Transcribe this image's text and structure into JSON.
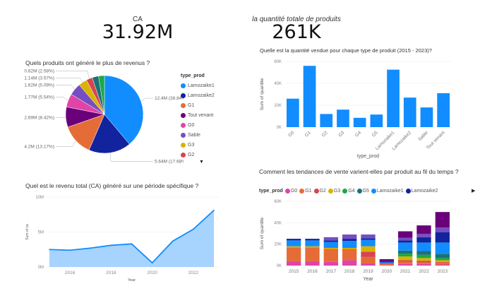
{
  "kpis": [
    {
      "label": "CA",
      "value": "31.92M"
    },
    {
      "label": "la quantité totale de produits",
      "value": "261K"
    }
  ],
  "colors": {
    "Lamozaike1": "#118DFF",
    "Lamozaike2": "#12239E",
    "G1": "#E66C37",
    "Tout venant": "#6B007B",
    "G0": "#E044A7",
    "Sable": "#744EC2",
    "G3": "#D9B300",
    "G2": "#D64550",
    "G5": "#197278",
    "G4": "#1AAB40"
  },
  "chart_data": [
    {
      "type": "pie",
      "title": "Quels produits ont généré le plus de revenus ?",
      "legend_title": "type_prod",
      "legend_position": "right",
      "legend": [
        "Lamozaike1",
        "Lamozaike2",
        "G1",
        "Tout venant",
        "G0",
        "Sable",
        "G3",
        "G2"
      ],
      "slices": [
        {
          "name": "Lamozaike1",
          "value": 12.4,
          "label": "12.4M (38.84%)"
        },
        {
          "name": "Lamozaike2",
          "value": 5.64,
          "label": "5.64M (17.68%)"
        },
        {
          "name": "G1",
          "value": 4.2,
          "label": "4.2M (13.17%)"
        },
        {
          "name": "Tout venant",
          "value": 2.69,
          "label": "2.69M (8.42%)"
        },
        {
          "name": "G0",
          "value": 1.77,
          "label": "1.77M (5.54%)"
        },
        {
          "name": "Sable",
          "value": 1.62,
          "label": "1.62M (5.09%)"
        },
        {
          "name": "G3",
          "value": 1.14,
          "label": "1.14M (3.57%)"
        },
        {
          "name": "G2",
          "value": 0.82,
          "label": "0.82M (2.58%)"
        },
        {
          "name": "G5",
          "value": 0.85,
          "label": ""
        },
        {
          "name": "G4",
          "value": 0.78,
          "label": ""
        }
      ]
    },
    {
      "type": "bar",
      "title": "Quelle est la quantité vendue pour chaque type de produit (2015 - 2023)?",
      "xlabel": "type_prod",
      "ylabel": "Sum of quantite",
      "ylim": [
        0,
        60000
      ],
      "yticks": [
        "0K",
        "20K",
        "40K",
        "60K"
      ],
      "grid": true,
      "categories": [
        "G0",
        "G1",
        "G2",
        "G3",
        "G4",
        "G5",
        "Lamozaike1",
        "Lamozaike2",
        "Sable",
        "Tout venant"
      ],
      "values": [
        26000,
        56000,
        12000,
        16000,
        8500,
        11500,
        52500,
        27000,
        18000,
        31000
      ]
    },
    {
      "type": "area",
      "title": "Quel est le revenu total (CA) généré sur une période spécifique ?",
      "xlabel": "Year",
      "ylabel": "Sum of ca",
      "ylim": [
        0,
        10
      ],
      "yticks": [
        "0M",
        "5M",
        "10M"
      ],
      "xticks": [
        "2016",
        "2018",
        "2020",
        "2022"
      ],
      "grid": true,
      "x": [
        2015,
        2016,
        2017,
        2018,
        2019,
        2020,
        2021,
        2022,
        2023
      ],
      "values": [
        2.5,
        2.4,
        2.7,
        3.1,
        3.3,
        0.6,
        3.7,
        5.4,
        8.1
      ]
    },
    {
      "type": "bar",
      "stacked": true,
      "title": "Comment les tendances de vente varient-elles par produit au fil du temps ?",
      "legend_title": "type_prod",
      "legend_position": "top",
      "xlabel": "Year",
      "ylabel": "Sum of quantite",
      "ylim": [
        0,
        60000
      ],
      "yticks": [
        "0K",
        "20K",
        "40K",
        "60K"
      ],
      "grid": true,
      "legend": [
        "G0",
        "G1",
        "G2",
        "G3",
        "G4",
        "G5",
        "Lamozaike1",
        "Lamozaike2"
      ],
      "categories": [
        "2015",
        "2016",
        "2017",
        "2018",
        "2019",
        "2020",
        "2021",
        "2022",
        "2023"
      ],
      "series": [
        {
          "name": "G0",
          "values": [
            4000,
            4000,
            3500,
            5000,
            2000,
            500,
            1500,
            1500,
            1000
          ]
        },
        {
          "name": "G1",
          "values": [
            13000,
            13000,
            12000,
            10500,
            6000,
            1000,
            2000,
            1500,
            2000
          ]
        },
        {
          "name": "G2",
          "values": [
            0,
            0,
            0,
            0,
            5000,
            500,
            1500,
            1500,
            500
          ]
        },
        {
          "name": "G3",
          "values": [
            1000,
            1000,
            1000,
            1000,
            5000,
            0,
            3500,
            2500,
            1500
          ]
        },
        {
          "name": "G4",
          "values": [
            0,
            0,
            0,
            0,
            0,
            0,
            2500,
            3000,
            2000
          ]
        },
        {
          "name": "G5",
          "values": [
            0,
            0,
            0,
            0,
            0,
            0,
            3000,
            3500,
            4000
          ]
        },
        {
          "name": "Lamozaike1",
          "values": [
            5500,
            5500,
            5500,
            6500,
            6000,
            1000,
            7500,
            8000,
            10500
          ]
        },
        {
          "name": "Lamozaike2",
          "values": [
            1500,
            1500,
            1500,
            2000,
            1500,
            500,
            2000,
            5000,
            9500
          ]
        },
        {
          "name": "Sable",
          "values": [
            0,
            0,
            3000,
            4000,
            3500,
            0,
            2500,
            3000,
            4500
          ]
        },
        {
          "name": "Tout venant",
          "values": [
            0,
            0,
            0,
            0,
            0,
            2500,
            6000,
            8000,
            14500
          ]
        }
      ]
    }
  ]
}
